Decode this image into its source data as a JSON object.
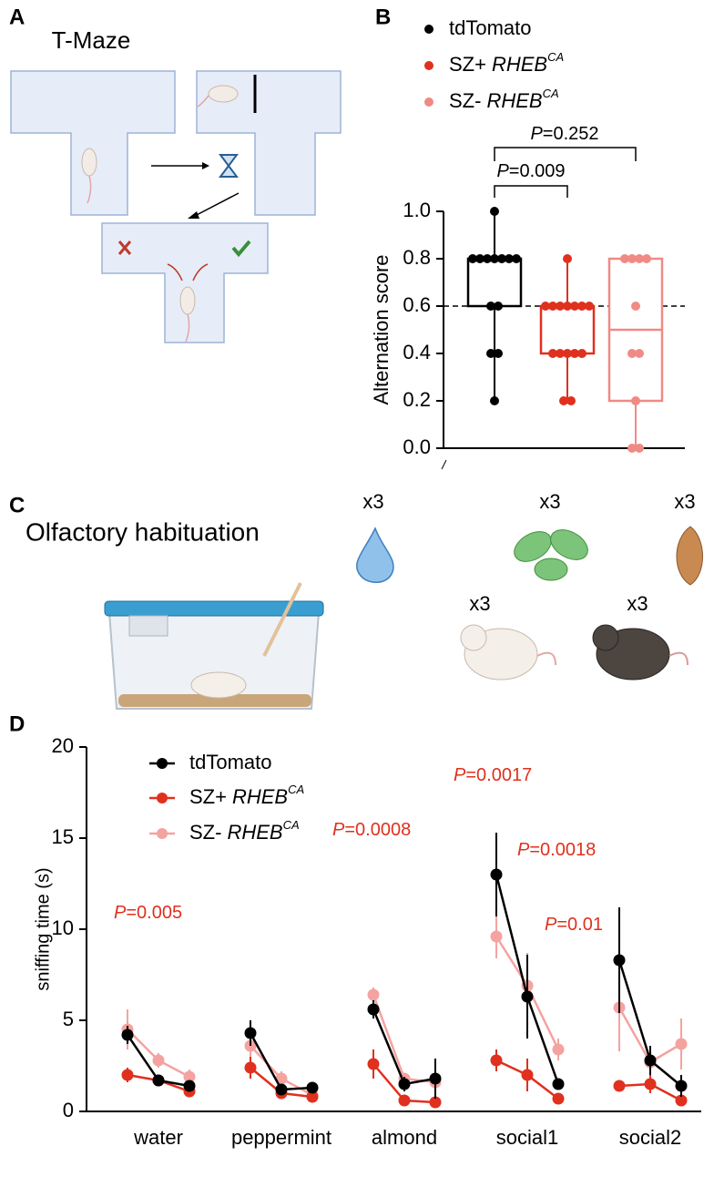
{
  "figure": {
    "panel_a": {
      "label": "A",
      "title": "T-Maze"
    },
    "panel_b": {
      "label": "B"
    },
    "panel_c": {
      "label": "C",
      "title": "Olfactory habituation",
      "stimulus_counts": [
        "x3",
        "x3",
        "x3",
        "x3",
        "x3"
      ]
    },
    "panel_d": {
      "label": "D"
    }
  },
  "chart_data": [
    {
      "type": "box",
      "y_label": "Alternation score",
      "ylim": [
        0,
        1
      ],
      "yticks": [
        {
          "value": 0,
          "label": "0.0"
        },
        0.2,
        0.4,
        0.6,
        0.8,
        {
          "value": 1,
          "label": "1.0"
        }
      ],
      "reference_line": 0.6,
      "series": [
        {
          "name": "tdTomato",
          "color": "#000000",
          "min": 0.2,
          "q1": 0.6,
          "median": 0.8,
          "q3": 0.8,
          "max": 1.0,
          "points": [
            1.0,
            0.8,
            0.8,
            0.8,
            0.8,
            0.8,
            0.8,
            0.8,
            0.6,
            0.6,
            0.4,
            0.4,
            0.2
          ]
        },
        {
          "name": "SZ+",
          "gene": "RHEB",
          "gene_sup": "CA",
          "color": "#e0301e",
          "min": 0.2,
          "q1": 0.4,
          "median": 0.6,
          "q3": 0.6,
          "max": 0.8,
          "points": [
            0.8,
            0.6,
            0.6,
            0.6,
            0.6,
            0.6,
            0.6,
            0.6,
            0.4,
            0.4,
            0.4,
            0.4,
            0.4,
            0.2,
            0.2
          ]
        },
        {
          "name": "SZ-",
          "gene": "RHEB",
          "gene_sup": "CA",
          "color": "#f08a84",
          "min": 0,
          "q1": 0.2,
          "median": 0.5,
          "q3": 0.8,
          "max": 0.8,
          "points": [
            0.8,
            0.8,
            0.8,
            0.8,
            0.6,
            0.4,
            0.4,
            0.2,
            0,
            0
          ]
        }
      ],
      "annotations": [
        {
          "symbol": "P",
          "text": "=0.009"
        },
        {
          "symbol": "P",
          "text": "=0.252"
        }
      ]
    },
    {
      "type": "line",
      "y_label": "sniffing time (s)",
      "ylim": [
        0,
        20
      ],
      "yticks": [
        0,
        5,
        10,
        15,
        20
      ],
      "categories": [
        "water",
        "peppermint",
        "almond",
        "social1",
        "social2"
      ],
      "series": [
        {
          "name": "tdTomato",
          "color": "#000000",
          "values": [
            [
              4.2,
              1.7,
              1.4
            ],
            [
              4.3,
              1.2,
              1.3
            ],
            [
              5.6,
              1.5,
              1.8
            ],
            [
              13.0,
              6.3,
              1.5
            ],
            [
              8.3,
              2.8,
              1.4
            ]
          ],
          "errors": [
            [
              0.5,
              0.3,
              0.3
            ],
            [
              0.7,
              0.3,
              0.2
            ],
            [
              0.5,
              0.4,
              1.1
            ],
            [
              2.3,
              2.3,
              0.3
            ],
            [
              2.9,
              0.8,
              0.6
            ]
          ]
        },
        {
          "name": "SZ+",
          "gene": "RHEB",
          "gene_sup": "CA",
          "color": "#e0301e",
          "values": [
            [
              2.0,
              1.7,
              1.1
            ],
            [
              2.4,
              1.0,
              0.8
            ],
            [
              2.6,
              0.6,
              0.5
            ],
            [
              2.8,
              2.0,
              0.7
            ],
            [
              1.4,
              1.5,
              0.6
            ]
          ],
          "errors": [
            [
              0.4,
              0.3,
              0.3
            ],
            [
              0.6,
              0.3,
              0.2
            ],
            [
              0.8,
              0.2,
              0.2
            ],
            [
              0.6,
              0.9,
              0.2
            ],
            [
              0.2,
              0.5,
              0.2
            ]
          ]
        },
        {
          "name": "SZ-",
          "gene": "RHEB",
          "gene_sup": "CA",
          "color": "#f4a3a0",
          "values": [
            [
              4.5,
              2.8,
              1.9
            ],
            [
              3.6,
              1.8,
              0.9
            ],
            [
              6.4,
              1.8,
              1.6
            ],
            [
              9.6,
              6.9,
              3.4
            ],
            [
              5.7,
              2.7,
              3.7
            ]
          ],
          "errors": [
            [
              1.1,
              0.4,
              0.4
            ],
            [
              0.6,
              0.4,
              0.3
            ],
            [
              0.4,
              0.3,
              0.4
            ],
            [
              1.2,
              1.8,
              0.6
            ],
            [
              2.4,
              0.6,
              1.4
            ]
          ]
        }
      ],
      "annotations": [
        {
          "symbol": "P",
          "text": "=0.005",
          "color": "#e0301e"
        },
        {
          "symbol": "P",
          "text": "=0.0008",
          "color": "#e0301e"
        },
        {
          "symbol": "P",
          "text": "=0.0017",
          "color": "#e0301e"
        },
        {
          "symbol": "P",
          "text": "=0.0018",
          "color": "#e0301e"
        },
        {
          "symbol": "P",
          "text": "=0.01",
          "color": "#e0301e"
        }
      ]
    }
  ]
}
